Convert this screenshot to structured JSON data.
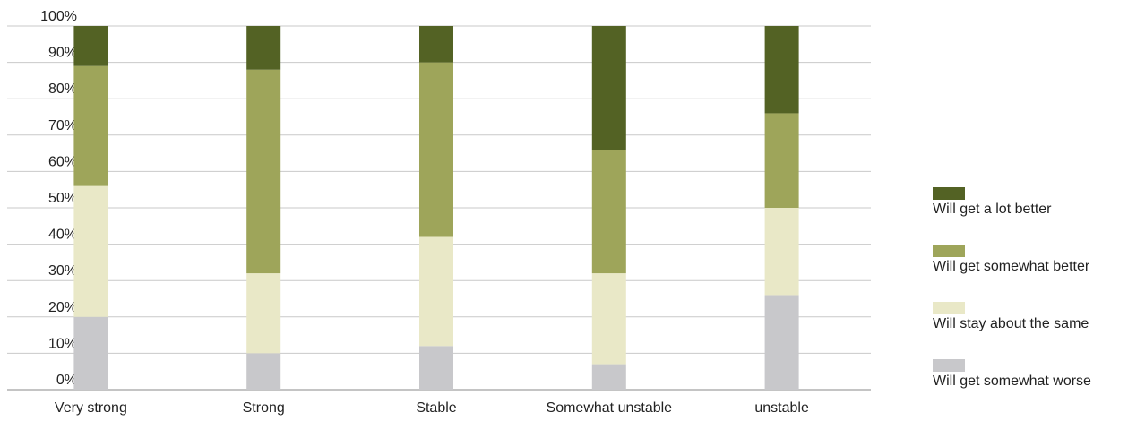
{
  "chart_data": {
    "type": "bar",
    "stacked": true,
    "categories": [
      "Very strong",
      "Strong",
      "Stable",
      "Somewhat unstable",
      "unstable"
    ],
    "series": [
      {
        "name": "Will get somewhat worse",
        "color": "#c8c8cb",
        "values": [
          20,
          10,
          12,
          7,
          26
        ]
      },
      {
        "name": "Will stay about the same",
        "color": "#e9e8c7",
        "values": [
          36,
          22,
          30,
          25,
          24
        ]
      },
      {
        "name": "Will get somewhat better",
        "color": "#9ea55a",
        "values": [
          33,
          56,
          48,
          34,
          26
        ]
      },
      {
        "name": "Will get a lot better",
        "color": "#536224",
        "values": [
          11,
          12,
          10,
          34,
          24
        ]
      }
    ],
    "y_ticks": [
      "0%",
      "10%",
      "20%",
      "30%",
      "40%",
      "50%",
      "60%",
      "70%",
      "80%",
      "90%",
      "100%"
    ],
    "ylim": [
      0,
      100
    ],
    "grid": true,
    "legend_position": "right",
    "title": "",
    "xlabel": "",
    "ylabel": ""
  },
  "legend": [
    {
      "label": "Will get a lot better",
      "color": "#536224"
    },
    {
      "label": "Will get somewhat better",
      "color": "#9ea55a"
    },
    {
      "label": "Will stay about the same",
      "color": "#e9e8c7"
    },
    {
      "label": "Will get somewhat worse",
      "color": "#c8c8cb"
    }
  ]
}
